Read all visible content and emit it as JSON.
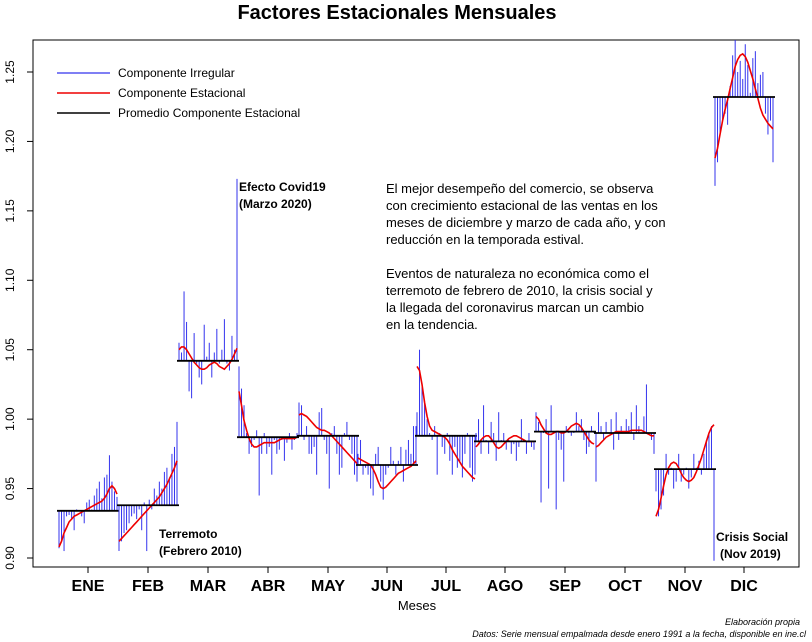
{
  "chart_data": {
    "type": "line",
    "title": "Factores Estacionales Mensuales",
    "xlabel": "Meses",
    "ylabel": "",
    "categories": [
      "ENE",
      "FEB",
      "MAR",
      "ABR",
      "MAY",
      "JUN",
      "JUL",
      "AGO",
      "SEP",
      "OCT",
      "NOV",
      "DIC"
    ],
    "ylim": [
      0.9,
      1.27
    ],
    "yticks": [
      0.9,
      0.95,
      1.0,
      1.05,
      1.1,
      1.15,
      1.2,
      1.25
    ],
    "ytick_labels": [
      "0.90",
      "0.95",
      "1.00",
      "1.05",
      "1.10",
      "1.15",
      "1.20",
      "1.25"
    ],
    "grid": false,
    "legend_position": "top-left",
    "colors": {
      "irregular": "#3333ee",
      "seasonal": "#ee0000",
      "mean": "#000000"
    },
    "series": [
      {
        "name": "Componente Irregular",
        "values": [
          [
            0.907,
            0.912,
            0.905,
            0.93,
            0.931,
            0.928,
            0.92,
            0.935,
            0.934,
            0.93,
            0.925,
            0.94,
            0.942,
            0.935,
            0.945,
            0.95,
            0.955,
            0.943,
            0.958,
            0.96,
            0.974,
            0.955,
            0.948,
            0.944
          ],
          [
            0.905,
            0.912,
            0.918,
            0.92,
            0.925,
            0.93,
            0.932,
            0.928,
            0.935,
            0.92,
            0.94,
            0.905,
            0.942,
            0.935,
            0.95,
            0.945,
            0.955,
            0.95,
            0.962,
            0.965,
            0.958,
            0.975,
            0.98,
            0.998
          ],
          [
            1.055,
            1.048,
            1.092,
            1.07,
            1.02,
            1.015,
            1.062,
            1.04,
            1.03,
            1.025,
            1.068,
            1.045,
            1.055,
            1.03,
            1.048,
            1.065,
            1.04,
            1.05,
            1.072,
            1.04,
            1.035,
            1.06,
            1.05,
            1.173
          ],
          [
            1.038,
            1.022,
            1.01,
            0.99,
            0.975,
            0.98,
            0.985,
            0.992,
            0.945,
            0.975,
            0.99,
            0.975,
            0.98,
            0.96,
            0.985,
            0.975,
            0.978,
            0.985,
            0.97,
            0.983,
            0.99,
            0.978,
            0.985,
            0.99
          ],
          [
            1.012,
            1.01,
            0.985,
            0.995,
            0.975,
            0.975,
            0.98,
            0.96,
            1.005,
            1.008,
            0.985,
            0.975,
            0.95,
            0.99,
            0.995,
            0.975,
            0.96,
            0.965,
            0.99,
            0.998,
            0.985,
            0.975,
            0.96,
            0.955
          ],
          [
            0.975,
            0.985,
            0.96,
            0.965,
            0.96,
            0.95,
            0.945,
            0.975,
            0.98,
            0.955,
            0.942,
            0.96,
            0.965,
            0.98,
            0.97,
            0.96,
            0.97,
            0.98,
            0.955,
            0.978,
            0.985,
            0.975,
            0.995,
            0.995
          ],
          [
            1.005,
            1.05,
            1.025,
            1.012,
            1.0,
            0.99,
            0.985,
            0.995,
            0.96,
            0.99,
            0.98,
            0.975,
            0.99,
            0.97,
            0.96,
            0.98,
            0.965,
            0.97,
            0.958,
            0.975,
            0.99,
            0.965,
            0.955,
            0.96
          ],
          [
            0.99,
            1.0,
            0.975,
            1.01,
            0.985,
            0.975,
            0.998,
            0.99,
            0.97,
            1.005,
            0.985,
            0.99,
            0.978,
            0.985,
            0.975,
            0.982,
            0.97,
            0.98,
            1.0,
            0.985,
            0.975,
            0.99,
            0.98,
            0.978
          ],
          [
            1.005,
            0.998,
            0.94,
            0.99,
            1.0,
            0.95,
            1.01,
            0.99,
            0.935,
            0.985,
            0.978,
            0.955,
            0.995,
            0.99,
            0.988,
            0.99,
            1.005,
            0.995,
            1.0,
            0.985,
            0.975,
            0.98,
            0.995,
            0.99
          ],
          [
            0.955,
            1.005,
            0.995,
            0.985,
            0.998,
            0.99,
            1.0,
            0.978,
            1.005,
            0.985,
            0.995,
            0.99,
            1.0,
            0.995,
            1.005,
            0.985,
            1.01,
            0.995,
            0.99,
            1.002,
            1.025,
            0.99,
            0.985,
            0.975
          ],
          [
            0.948,
            0.93,
            0.935,
            0.945,
            0.975,
            0.96,
            0.965,
            0.95,
            0.955,
            0.975,
            0.955,
            0.96,
            0.965,
            0.95,
            0.958,
            0.975,
            0.965,
            0.97,
            0.96,
            0.975,
            0.985,
            0.99,
            0.995,
            0.898
          ],
          [
            1.168,
            1.185,
            1.205,
            1.215,
            1.22,
            1.212,
            1.24,
            1.262,
            1.273,
            1.25,
            1.258,
            1.245,
            1.27,
            1.255,
            1.235,
            1.26,
            1.265,
            1.242,
            1.248,
            1.25,
            1.22,
            1.205,
            1.215,
            1.185
          ]
        ]
      },
      {
        "name": "Componente Estacional",
        "values": [
          [
            0.908,
            0.912,
            0.918,
            0.922,
            0.926,
            0.928,
            0.93,
            0.931,
            0.932,
            0.933,
            0.934,
            0.935,
            0.936,
            0.937,
            0.938,
            0.939,
            0.94,
            0.941,
            0.943,
            0.946,
            0.95,
            0.952,
            0.95,
            0.946
          ],
          [
            0.912,
            0.914,
            0.916,
            0.918,
            0.92,
            0.922,
            0.924,
            0.926,
            0.928,
            0.93,
            0.932,
            0.934,
            0.936,
            0.938,
            0.94,
            0.942,
            0.944,
            0.947,
            0.95,
            0.953,
            0.957,
            0.961,
            0.965,
            0.97
          ],
          [
            1.05,
            1.052,
            1.052,
            1.05,
            1.047,
            1.044,
            1.041,
            1.039,
            1.037,
            1.036,
            1.036,
            1.037,
            1.039,
            1.04,
            1.041,
            1.04,
            1.038,
            1.037,
            1.036,
            1.038,
            1.04,
            1.043,
            1.047,
            1.051
          ],
          [
            1.02,
            1.01,
            0.999,
            0.992,
            0.986,
            0.982,
            0.98,
            0.98,
            0.981,
            0.982,
            0.983,
            0.983,
            0.983,
            0.983,
            0.983,
            0.984,
            0.985,
            0.986,
            0.986,
            0.986,
            0.986,
            0.986,
            0.986,
            0.987
          ],
          [
            1.003,
            1.004,
            1.003,
            1.002,
            1.0,
            0.998,
            0.996,
            0.994,
            0.993,
            0.992,
            0.992,
            0.991,
            0.99,
            0.988,
            0.986,
            0.984,
            0.982,
            0.98,
            0.978,
            0.976,
            0.974,
            0.972,
            0.97,
            0.968
          ],
          [
            0.972,
            0.971,
            0.97,
            0.969,
            0.968,
            0.967,
            0.964,
            0.96,
            0.955,
            0.951,
            0.95,
            0.951,
            0.953,
            0.955,
            0.957,
            0.959,
            0.961,
            0.962,
            0.963,
            0.964,
            0.965,
            0.966,
            0.968,
            0.97
          ],
          [
            1.038,
            1.035,
            1.025,
            1.012,
            1.002,
            0.995,
            0.992,
            0.991,
            0.99,
            0.989,
            0.988,
            0.987,
            0.985,
            0.982,
            0.978,
            0.975,
            0.972,
            0.969,
            0.966,
            0.964,
            0.962,
            0.96,
            0.958,
            0.957
          ],
          [
            0.98,
            0.982,
            0.985,
            0.987,
            0.988,
            0.988,
            0.986,
            0.983,
            0.98,
            0.979,
            0.98,
            0.982,
            0.984,
            0.986,
            0.987,
            0.988,
            0.988,
            0.987,
            0.986,
            0.985,
            0.984,
            0.984,
            0.984,
            0.984
          ],
          [
            1.002,
            1.0,
            0.996,
            0.993,
            0.99,
            0.989,
            0.989,
            0.99,
            0.991,
            0.991,
            0.99,
            0.99,
            0.991,
            0.993,
            0.995,
            0.996,
            0.997,
            0.996,
            0.994,
            0.991,
            0.988,
            0.985,
            0.983,
            0.982
          ],
          [
            0.98,
            0.981,
            0.983,
            0.985,
            0.987,
            0.988,
            0.989,
            0.99,
            0.991,
            0.991,
            0.991,
            0.991,
            0.991,
            0.991,
            0.992,
            0.992,
            0.992,
            0.992,
            0.992,
            0.991,
            0.99,
            0.989,
            0.988,
            0.988
          ],
          [
            0.93,
            0.935,
            0.943,
            0.952,
            0.96,
            0.965,
            0.968,
            0.969,
            0.968,
            0.965,
            0.961,
            0.958,
            0.956,
            0.955,
            0.956,
            0.958,
            0.962,
            0.967,
            0.972,
            0.978,
            0.984,
            0.99,
            0.994,
            0.996
          ],
          [
            1.188,
            1.195,
            1.205,
            1.215,
            1.223,
            1.23,
            1.238,
            1.246,
            1.254,
            1.259,
            1.262,
            1.263,
            1.261,
            1.257,
            1.251,
            1.245,
            1.238,
            1.231,
            1.224,
            1.219,
            1.216,
            1.213,
            1.211,
            1.209
          ]
        ]
      },
      {
        "name": "Promedio Componente Estacional",
        "values": [
          0.934,
          0.938,
          1.042,
          0.987,
          0.988,
          0.967,
          0.988,
          0.984,
          0.991,
          0.99,
          0.964,
          1.232
        ]
      }
    ],
    "annotations": {
      "covid": [
        "Efecto Covid19",
        "(Marzo 2020)"
      ],
      "terremoto": [
        "Terremoto",
        "(Febrero 2010)"
      ],
      "crisis": [
        "Crisis Social",
        "(Nov 2019)"
      ],
      "paragraph1": [
        "El mejor desempeño del comercio,  se observa",
        "con crecimiento estacional de las ventas en los",
        "meses de diciembre y marzo de cada año, y con",
        "reducción en la temporada estival."
      ],
      "paragraph2": [
        "Eventos de naturaleza no económica como el",
        "terremoto de febrero de 2010,  la crisis social y",
        "la llegada del coronavirus marcan un cambio",
        "en la tendencia."
      ]
    },
    "footnote": [
      "Elaboración propia",
      "Datos: Serie mensual empalmada desde enero 1991 a la fecha, disponible en ine.cl"
    ]
  }
}
